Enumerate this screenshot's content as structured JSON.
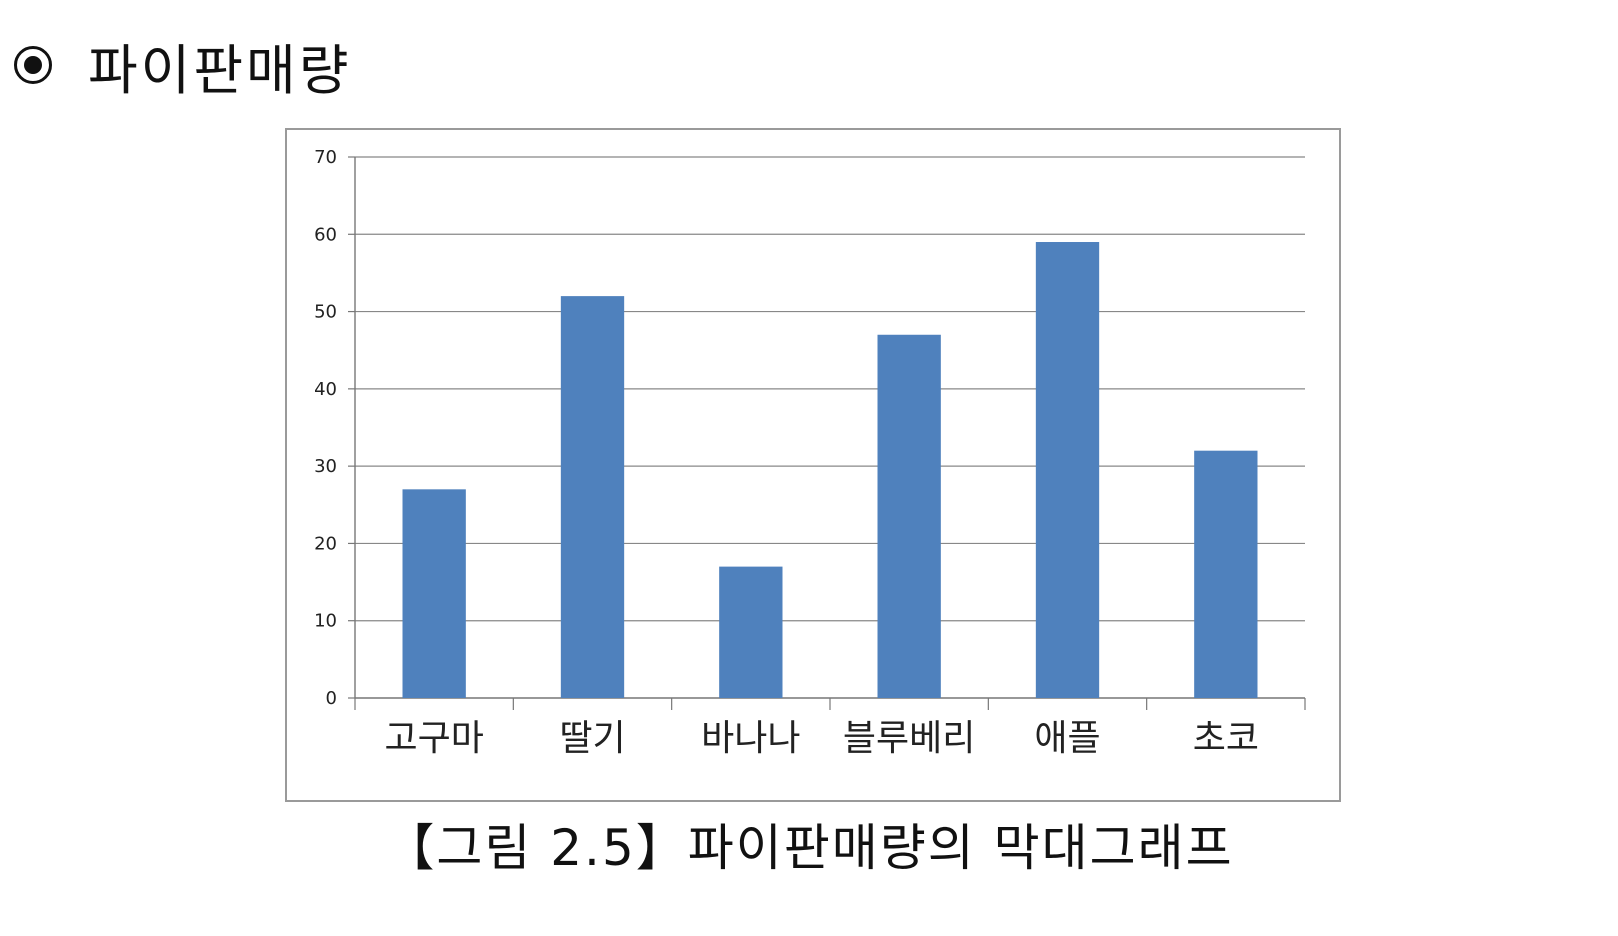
{
  "heading": {
    "bullet_icon": "radio-bullet-icon",
    "text": "파이판매량"
  },
  "caption": "【그림 2.5】파이판매량의 막대그래프",
  "chart_data": {
    "type": "bar",
    "categories": [
      "고구마",
      "딸기",
      "바나나",
      "블루베리",
      "애플",
      "초코"
    ],
    "values": [
      27,
      52,
      17,
      47,
      59,
      32
    ],
    "ylim": [
      0,
      70
    ],
    "yticks": [
      0,
      10,
      20,
      30,
      40,
      50,
      60,
      70
    ],
    "grid": true,
    "legend": "none",
    "bar_color": "#4f81bd",
    "grid_color": "#888888"
  }
}
